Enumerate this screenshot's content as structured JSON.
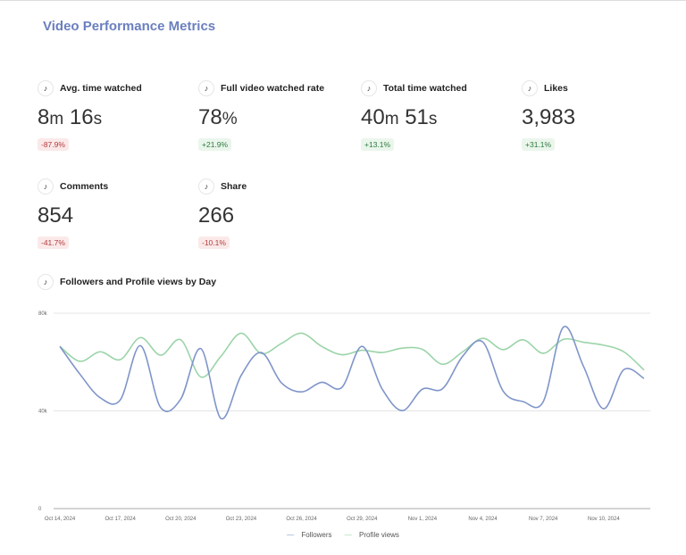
{
  "title": "Video Performance Metrics",
  "metrics": [
    {
      "label": "Avg. time watched",
      "value": [
        {
          "t": "8"
        },
        {
          "t": "m",
          "u": true
        },
        {
          "t": " 16"
        },
        {
          "t": "s",
          "u": true
        }
      ],
      "change": "-87.9%",
      "trend": "neg"
    },
    {
      "label": "Full video watched rate",
      "value": [
        {
          "t": "78"
        },
        {
          "t": "%",
          "u": true
        }
      ],
      "change": "+21.9%",
      "trend": "pos"
    },
    {
      "label": "Total time watched",
      "value": [
        {
          "t": "40"
        },
        {
          "t": "m",
          "u": true
        },
        {
          "t": " 51"
        },
        {
          "t": "s",
          "u": true
        }
      ],
      "change": "+13.1%",
      "trend": "pos"
    },
    {
      "label": "Likes",
      "value": [
        {
          "t": "3,983"
        }
      ],
      "change": "+31.1%",
      "trend": "pos"
    },
    {
      "label": "Comments",
      "value": [
        {
          "t": "854"
        }
      ],
      "change": "-41.7%",
      "trend": "neg"
    },
    {
      "label": "Share",
      "value": [
        {
          "t": "266"
        }
      ],
      "change": "-10.1%",
      "trend": "neg"
    }
  ],
  "icon": "tiktok-icon",
  "icon_glyph": "♪",
  "chart_title": "Followers and Profile views by Day",
  "chart_data": {
    "type": "line",
    "title": "Followers and Profile views by Day",
    "x": [
      "Oct 14",
      "Oct 15",
      "Oct 16",
      "Oct 17",
      "Oct 18",
      "Oct 19",
      "Oct 20",
      "Oct 21",
      "Oct 22",
      "Oct 23",
      "Oct 24",
      "Oct 25",
      "Oct 26",
      "Oct 27",
      "Oct 28",
      "Oct 29",
      "Oct 30",
      "Oct 31",
      "Nov 1",
      "Nov 2",
      "Nov 3",
      "Nov 4",
      "Nov 5",
      "Nov 6",
      "Nov 7",
      "Nov 8",
      "Nov 9",
      "Nov 10",
      "Nov 11",
      "Nov 12"
    ],
    "xticks": [
      "Oct 14, 2024",
      "Oct 17, 2024",
      "Oct 20, 2024",
      "Oct 23, 2024",
      "Oct 26, 2024",
      "Oct 29, 2024",
      "Nov 1, 2024",
      "Nov 4, 2024",
      "Nov 7, 2024",
      "Nov 10, 2024"
    ],
    "yticks": [
      "0",
      "40k",
      "80k"
    ],
    "ylim": [
      0,
      80000
    ],
    "grid": true,
    "legend": "bottom",
    "series": [
      {
        "name": "Followers",
        "color": "#7f95c9",
        "values": [
          66400,
          55000,
          45400,
          44500,
          66700,
          41400,
          44800,
          65500,
          36900,
          54500,
          63900,
          51500,
          47800,
          51700,
          49600,
          66400,
          49000,
          40100,
          48900,
          49100,
          62400,
          68200,
          48200,
          43800,
          43800,
          74300,
          58200,
          40900,
          56900,
          53300
        ]
      },
      {
        "name": "Profile views",
        "color": "#9bd4a8",
        "values": [
          66400,
          60300,
          64200,
          61000,
          70000,
          62800,
          69100,
          53900,
          62400,
          71800,
          63500,
          67600,
          71800,
          66400,
          63000,
          64800,
          63900,
          65700,
          65200,
          59100,
          64200,
          69700,
          65100,
          69100,
          63600,
          69300,
          68100,
          66900,
          64200,
          56700
        ]
      }
    ]
  }
}
